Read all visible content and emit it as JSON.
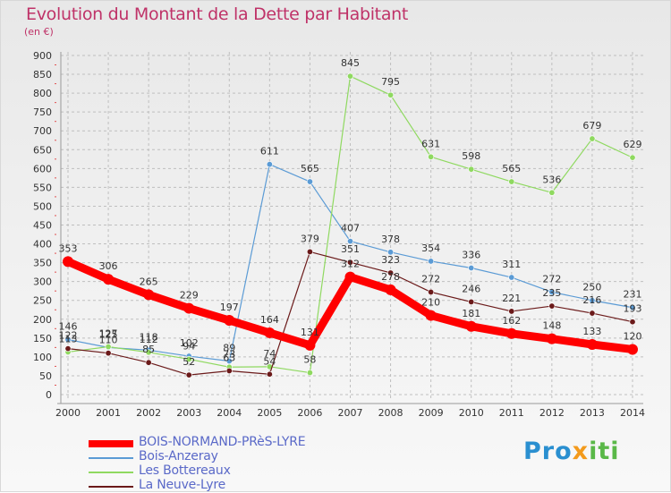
{
  "title": "Evolution du Montant de la Dette par Habitant",
  "unit": "(en €)",
  "logo": {
    "a": "Pro",
    "b": "x",
    "c": "iti"
  },
  "chart_data": {
    "type": "line",
    "x": [
      "2000",
      "2001",
      "2002",
      "2003",
      "2004",
      "2005",
      "2006",
      "2007",
      "2008",
      "2009",
      "2010",
      "2011",
      "2012",
      "2013",
      "2014"
    ],
    "ylim": [
      0,
      900
    ],
    "yticks": [
      0,
      50,
      100,
      150,
      200,
      250,
      300,
      350,
      400,
      450,
      500,
      550,
      600,
      650,
      700,
      750,
      800,
      850,
      900
    ],
    "grid": true,
    "legend_position": "bottom-left",
    "series": [
      {
        "name": "BOIS-NORMAND-PRèS-LYRE",
        "color": "#ff0000",
        "values": [
          353,
          306,
          265,
          229,
          197,
          164,
          131,
          312,
          278,
          210,
          181,
          162,
          148,
          133,
          120
        ]
      },
      {
        "name": "Bois-Anzeray",
        "color": "#5b9bd5",
        "values": [
          146,
          125,
          118,
          102,
          89,
          611,
          565,
          407,
          378,
          354,
          336,
          311,
          272,
          250,
          231
        ]
      },
      {
        "name": "Les Bottereaux",
        "color": "#8fd960",
        "values": [
          113,
          127,
          112,
          94,
          73,
          74,
          58,
          845,
          795,
          631,
          598,
          565,
          536,
          679,
          629
        ]
      },
      {
        "name": "La Neuve-Lyre",
        "color": "#6b1a1a",
        "values": [
          122,
          110,
          85,
          52,
          63,
          54,
          379,
          351,
          323,
          272,
          246,
          221,
          235,
          216,
          193
        ]
      }
    ]
  }
}
